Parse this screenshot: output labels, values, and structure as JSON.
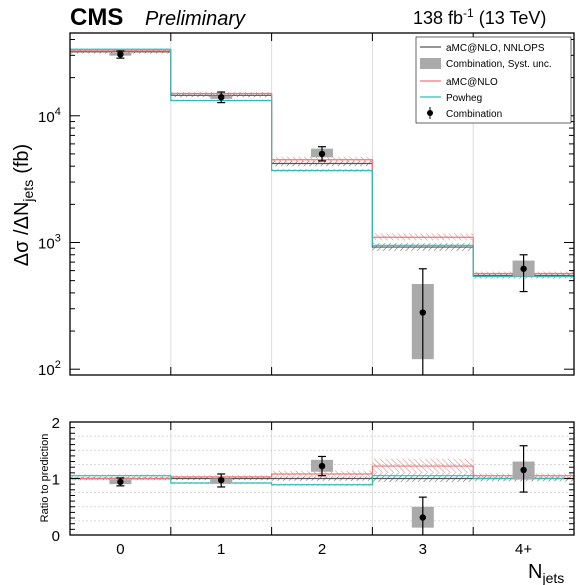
{
  "header": {
    "experiment": "CMS",
    "status": "Preliminary",
    "luminosity": "138 fb",
    "luminosity_exp": "-1",
    "energy": "(13 TeV)"
  },
  "colors": {
    "nnlops": "#555555",
    "amcnlo": "#ee7777",
    "powheg": "#33bbbb",
    "syst_box": "#aaaaaa",
    "data": "#000000"
  },
  "chart_data": [
    {
      "type": "step",
      "title": "",
      "ylabel": "Δσ /ΔN",
      "ylabel_sub": "jets",
      "ylabel_unit": "(fb)",
      "yscale": "log",
      "ylim": [
        90,
        45000
      ],
      "ytick_labels": [
        {
          "value": 100,
          "base": "10",
          "exp": "2"
        },
        {
          "value": 1000,
          "base": "10",
          "exp": "3"
        },
        {
          "value": 10000,
          "base": "10",
          "exp": "4"
        }
      ],
      "categories": [
        "0",
        "1",
        "2",
        "3",
        "4+"
      ],
      "legend_position": "top-right",
      "legend": [
        {
          "key": "nnlops",
          "label": "aMC@NLO, NNLOPS"
        },
        {
          "key": "syst",
          "label": "Combination, Syst. unc."
        },
        {
          "key": "amcnlo",
          "label": "aMC@NLO"
        },
        {
          "key": "powheg",
          "label": "Powheg"
        },
        {
          "key": "data",
          "label": "Combination"
        }
      ],
      "series": [
        {
          "key": "nnlops",
          "values": [
            32000,
            14500,
            4200,
            920,
            550
          ],
          "unc_low": [
            31000,
            14000,
            4000,
            860,
            520
          ],
          "unc_high": [
            33000,
            15000,
            4400,
            980,
            570
          ]
        },
        {
          "key": "amcnlo",
          "values": [
            32500,
            15000,
            4500,
            1100,
            570
          ],
          "unc_low": [
            31500,
            14600,
            4300,
            1040,
            550
          ],
          "unc_high": [
            33500,
            15400,
            4750,
            1180,
            590
          ]
        },
        {
          "key": "powheg",
          "values": [
            33500,
            13200,
            3700,
            950,
            540
          ],
          "unc_low": [
            33000,
            13000,
            3600,
            910,
            525
          ],
          "unc_high": [
            34000,
            13400,
            3800,
            990,
            555
          ]
        }
      ],
      "combination": {
        "values": [
          30500,
          14000,
          5000,
          280,
          620
        ],
        "err_low": [
          28500,
          12700,
          4400,
          90,
          410
        ],
        "err_high": [
          32500,
          15400,
          5700,
          620,
          800
        ],
        "syst_low": [
          29800,
          13600,
          4700,
          120,
          540
        ],
        "syst_high": [
          31300,
          14400,
          5500,
          470,
          720
        ]
      }
    },
    {
      "type": "step",
      "title": "",
      "ylabel": "Ratio to prediction",
      "xlabel": "N",
      "xlabel_sub": "jets",
      "ylim": [
        0,
        2
      ],
      "ytick_labels": [
        "0",
        "1",
        "2"
      ],
      "categories": [
        "0",
        "1",
        "2",
        "3",
        "4+"
      ],
      "series": [
        {
          "key": "nnlops",
          "values": [
            1.0,
            1.0,
            1.0,
            1.0,
            1.0
          ],
          "unc_low": [
            0.97,
            0.97,
            0.96,
            0.94,
            0.95
          ],
          "unc_high": [
            1.03,
            1.03,
            1.04,
            1.06,
            1.04
          ]
        },
        {
          "key": "amcnlo",
          "values": [
            1.0,
            1.03,
            1.08,
            1.22,
            1.05
          ],
          "unc_low": [
            0.97,
            1.0,
            1.03,
            1.1,
            1.01
          ],
          "unc_high": [
            1.03,
            1.06,
            1.14,
            1.35,
            1.09
          ]
        },
        {
          "key": "powheg",
          "values": [
            1.05,
            0.92,
            0.89,
            1.05,
            1.0
          ],
          "unc_low": [
            1.03,
            0.9,
            0.87,
            1.0,
            0.97
          ],
          "unc_high": [
            1.07,
            0.94,
            0.91,
            1.1,
            1.03
          ]
        }
      ],
      "combination": {
        "values": [
          0.94,
          0.97,
          1.22,
          0.31,
          1.15
        ],
        "err_low": [
          0.87,
          0.85,
          1.05,
          0.0,
          0.76
        ],
        "err_high": [
          1.01,
          1.08,
          1.39,
          0.67,
          1.58
        ],
        "syst_low": [
          0.9,
          0.92,
          1.12,
          0.13,
          0.98
        ],
        "syst_high": [
          0.98,
          1.0,
          1.33,
          0.5,
          1.3
        ]
      }
    }
  ]
}
